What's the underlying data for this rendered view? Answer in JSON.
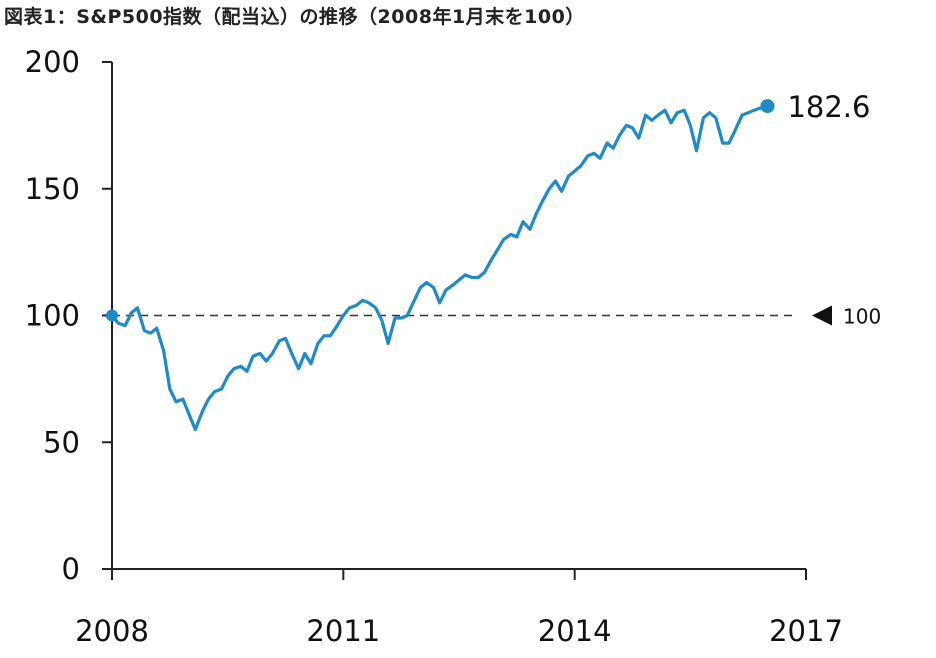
{
  "chart_data": {
    "type": "line",
    "title": "図表1：S&P500指数（配当込）の推移（2008年1月末を100）",
    "xlabel": "",
    "ylabel": "",
    "xlim": [
      2008,
      2017
    ],
    "ylim": [
      0,
      200
    ],
    "x_ticks": [
      2008,
      2011,
      2014,
      2017
    ],
    "x_tick_labels": [
      "2008",
      "2011",
      "2014",
      "2017"
    ],
    "y_ticks": [
      0,
      50,
      100,
      150,
      200
    ],
    "y_tick_labels": [
      "0",
      "50",
      "100",
      "150",
      "200"
    ],
    "grid": false,
    "legend": "none",
    "colors": {
      "series": "#1f8ac9",
      "reference": "#333333"
    },
    "reference_line": {
      "y": 100,
      "label": "100",
      "style": "dashed"
    },
    "end_label": "182.6",
    "series": [
      {
        "x": [
          2008.0,
          2008.08,
          2008.17,
          2008.25,
          2008.33,
          2008.42,
          2008.5,
          2008.58,
          2008.67,
          2008.75,
          2008.83,
          2008.92,
          2009.0,
          2009.08,
          2009.17,
          2009.25,
          2009.33,
          2009.42,
          2009.5,
          2009.58,
          2009.67,
          2009.75,
          2009.83,
          2009.92,
          2010.0,
          2010.08,
          2010.17,
          2010.25,
          2010.33,
          2010.42,
          2010.5,
          2010.58,
          2010.67,
          2010.75,
          2010.83,
          2010.92,
          2011.0,
          2011.08,
          2011.17,
          2011.25,
          2011.33,
          2011.42,
          2011.5,
          2011.58,
          2011.67,
          2011.75,
          2011.83,
          2011.92,
          2012.0,
          2012.08,
          2012.17,
          2012.25,
          2012.33,
          2012.42,
          2012.5,
          2012.58,
          2012.67,
          2012.75,
          2012.83,
          2012.92,
          2013.0,
          2013.08,
          2013.17,
          2013.25,
          2013.33,
          2013.42,
          2013.5,
          2013.58,
          2013.67,
          2013.75,
          2013.83,
          2013.92,
          2014.0,
          2014.08,
          2014.17,
          2014.25,
          2014.33,
          2014.42,
          2014.5,
          2014.58,
          2014.67,
          2014.75,
          2014.83,
          2014.92,
          2015.0,
          2015.08,
          2015.17,
          2015.25,
          2015.33,
          2015.42,
          2015.5,
          2015.58,
          2015.67,
          2015.75,
          2015.83,
          2015.92,
          2016.0,
          2016.08,
          2016.17,
          2016.25,
          2016.33,
          2016.42,
          2016.5
        ],
        "y": [
          100,
          97,
          96,
          101,
          103,
          94,
          93,
          95,
          86,
          71,
          66,
          67,
          61,
          55,
          62,
          67,
          70,
          71,
          76,
          79,
          80,
          78,
          84,
          85,
          82,
          85,
          90,
          91,
          85,
          79,
          85,
          81,
          89,
          92,
          92,
          96,
          100,
          103,
          104,
          106,
          105,
          103,
          98,
          89,
          99,
          99,
          100,
          106,
          111,
          113,
          111,
          105,
          110,
          112,
          114,
          116,
          115,
          115,
          117,
          122,
          126,
          130,
          132,
          131,
          137,
          134,
          140,
          145,
          150,
          153,
          149,
          155,
          157,
          159,
          163,
          164,
          162,
          168,
          166,
          171,
          175,
          174,
          170,
          179,
          177,
          179,
          181,
          176,
          180,
          181,
          175,
          165,
          178,
          180,
          178,
          168,
          168,
          173,
          179,
          180,
          181,
          182,
          182.6
        ]
      }
    ]
  }
}
